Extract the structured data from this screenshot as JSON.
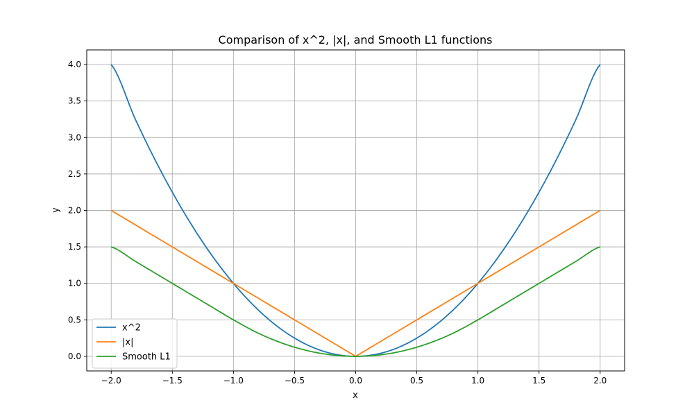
{
  "chart_data": {
    "type": "line",
    "title": "Comparison of x^2, |x|, and Smooth L1 functions",
    "xlabel": "x",
    "ylabel": "y",
    "xlim": [
      -2.2,
      2.2
    ],
    "ylim": [
      -0.2,
      4.2
    ],
    "x_ticks": [
      -2.0,
      -1.5,
      -1.0,
      -0.5,
      0.0,
      0.5,
      1.0,
      1.5,
      2.0
    ],
    "x_tick_labels": [
      "−2.0",
      "−1.5",
      "−1.0",
      "−0.5",
      "0.0",
      "0.5",
      "1.0",
      "1.5",
      "2.0"
    ],
    "y_ticks": [
      0.0,
      0.5,
      1.0,
      1.5,
      2.0,
      2.5,
      3.0,
      3.5,
      4.0
    ],
    "y_tick_labels": [
      "0.0",
      "0.5",
      "1.0",
      "1.5",
      "2.0",
      "2.5",
      "3.0",
      "3.5",
      "4.0"
    ],
    "grid": true,
    "legend_placement": "lower-left",
    "x": [
      -2.0,
      -1.8,
      -1.6,
      -1.4,
      -1.2,
      -1.0,
      -0.8,
      -0.6,
      -0.4,
      -0.2,
      0.0,
      0.2,
      0.4,
      0.6,
      0.8,
      1.0,
      1.2,
      1.4,
      1.6,
      1.8,
      2.0
    ],
    "series": [
      {
        "name": "x^2",
        "color": "#1f77b4",
        "values": [
          4.0,
          3.24,
          2.56,
          1.96,
          1.44,
          1.0,
          0.64,
          0.36,
          0.16,
          0.04,
          0.0,
          0.04,
          0.16,
          0.36,
          0.64,
          1.0,
          1.44,
          1.96,
          2.56,
          3.24,
          4.0
        ]
      },
      {
        "name": "|x|",
        "color": "#ff7f0e",
        "values": [
          2.0,
          1.8,
          1.6,
          1.4,
          1.2,
          1.0,
          0.8,
          0.6,
          0.4,
          0.2,
          0.0,
          0.2,
          0.4,
          0.6,
          0.8,
          1.0,
          1.2,
          1.4,
          1.6,
          1.8,
          2.0
        ]
      },
      {
        "name": "Smooth L1",
        "color": "#2ca02c",
        "values": [
          1.5,
          1.3,
          1.1,
          0.9,
          0.7,
          0.5,
          0.32,
          0.18,
          0.08,
          0.02,
          0.0,
          0.02,
          0.08,
          0.18,
          0.32,
          0.5,
          0.7,
          0.9,
          1.1,
          1.3,
          1.5
        ]
      }
    ]
  }
}
